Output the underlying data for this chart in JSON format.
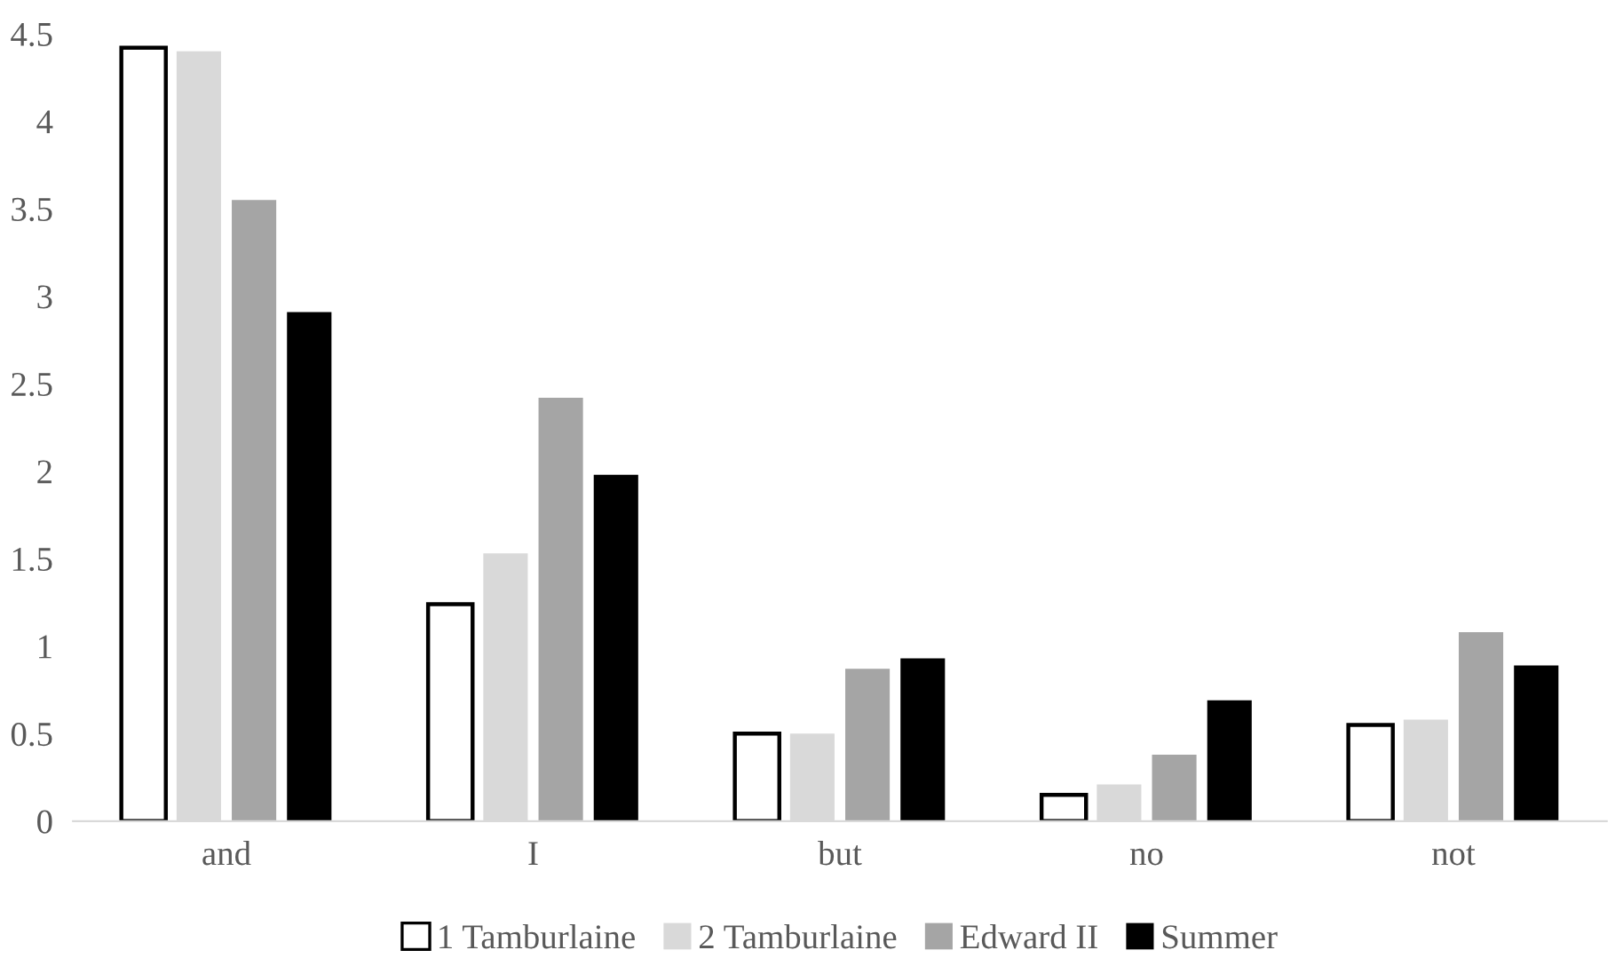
{
  "chart_data": {
    "type": "bar",
    "categories": [
      "and",
      "I",
      "but",
      "no",
      "not"
    ],
    "series": [
      {
        "name": "1 Tamburlaine",
        "color": "#ffffff",
        "values": [
          4.42,
          1.24,
          0.5,
          0.15,
          0.55
        ]
      },
      {
        "name": "2 Tamburlaine",
        "color": "#d9d9d9",
        "values": [
          4.4,
          1.53,
          0.5,
          0.21,
          0.58
        ]
      },
      {
        "name": "Edward II",
        "color": "#a5a5a5",
        "values": [
          3.55,
          2.42,
          0.87,
          0.38,
          1.08
        ]
      },
      {
        "name": "Summer",
        "color": "#000000",
        "values": [
          2.91,
          1.98,
          0.93,
          0.69,
          0.89
        ]
      }
    ],
    "ylim": [
      0,
      4.5
    ],
    "yticks": [
      0,
      0.5,
      1,
      1.5,
      2,
      2.5,
      3,
      3.5,
      4,
      4.5
    ],
    "grid": false,
    "legend": "bottom"
  }
}
